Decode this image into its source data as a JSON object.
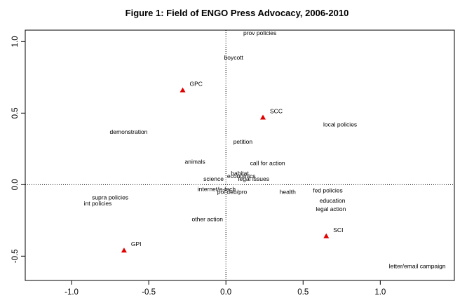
{
  "chart_data": {
    "type": "scatter",
    "title": "Figure 1: Field of ENGO Press Advocacy, 2006-2010",
    "xlabel": "",
    "ylabel": "",
    "xlim": [
      -1.3,
      1.48
    ],
    "ylim": [
      -0.67,
      1.08
    ],
    "xticks": [
      -1.0,
      -0.5,
      0.0,
      0.5,
      1.0
    ],
    "xtick_labels": [
      "-1.0",
      "-0.5",
      "0.0",
      "0.5",
      "1.0"
    ],
    "yticks": [
      -0.5,
      0.0,
      0.5,
      1.0
    ],
    "ytick_labels": [
      "-0.5",
      "0.0",
      "0.5",
      "1.0"
    ],
    "reference_lines": {
      "x": 0,
      "y": 0,
      "style": "dotted"
    },
    "grid": false,
    "legend": "none",
    "series": [
      {
        "marker": "triangle",
        "color": "#e00000",
        "points": [
          {
            "label": "GPC",
            "x": -0.28,
            "y": 0.66
          },
          {
            "label": "SCC",
            "x": 0.24,
            "y": 0.47
          },
          {
            "label": "SCI",
            "x": 0.65,
            "y": -0.36
          },
          {
            "label": "GPI",
            "x": -0.66,
            "y": -0.46
          }
        ]
      },
      {
        "marker": "none",
        "color": "#000000",
        "points": [
          {
            "label": "prov policies",
            "x": 0.22,
            "y": 1.06
          },
          {
            "label": "boycott",
            "x": 0.05,
            "y": 0.89
          },
          {
            "label": "local policies",
            "x": 0.74,
            "y": 0.42
          },
          {
            "label": "demonstration",
            "x": -0.63,
            "y": 0.37
          },
          {
            "label": "petition",
            "x": 0.11,
            "y": 0.3
          },
          {
            "label": "animals",
            "x": -0.2,
            "y": 0.16
          },
          {
            "label": "call for action",
            "x": 0.27,
            "y": 0.15
          },
          {
            "label": "habitat",
            "x": 0.09,
            "y": 0.08
          },
          {
            "label": "economics",
            "x": 0.1,
            "y": 0.06
          },
          {
            "label": "science",
            "x": -0.08,
            "y": 0.04
          },
          {
            "label": "legal issues",
            "x": 0.18,
            "y": 0.04
          },
          {
            "label": "internet/e-tech",
            "x": -0.06,
            "y": -0.03
          },
          {
            "label": "pol deb/pro",
            "x": 0.04,
            "y": -0.05
          },
          {
            "label": "health",
            "x": 0.4,
            "y": -0.05
          },
          {
            "label": "fed policies",
            "x": 0.66,
            "y": -0.04
          },
          {
            "label": "supra policies",
            "x": -0.75,
            "y": -0.09
          },
          {
            "label": "int policies",
            "x": -0.83,
            "y": -0.13
          },
          {
            "label": "education",
            "x": 0.69,
            "y": -0.11
          },
          {
            "label": "legal action",
            "x": 0.68,
            "y": -0.17
          },
          {
            "label": "other action",
            "x": -0.12,
            "y": -0.24
          },
          {
            "label": "letter/email campaign",
            "x": 1.24,
            "y": -0.57
          }
        ]
      }
    ]
  }
}
